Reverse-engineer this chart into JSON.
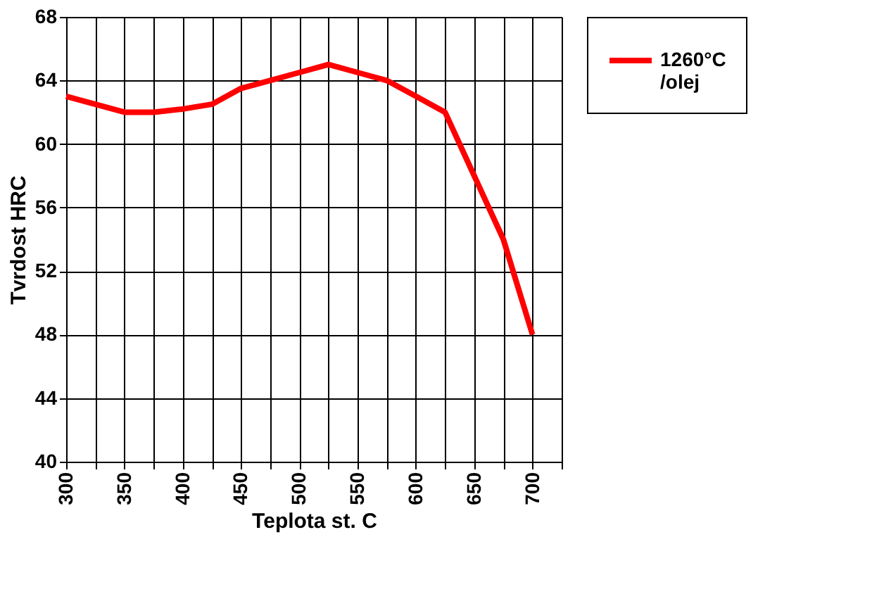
{
  "chart_data": {
    "type": "line",
    "xlabel": "Teplota st. C",
    "ylabel": "Tvrdost HRC",
    "x": [
      300,
      325,
      350,
      375,
      400,
      425,
      450,
      475,
      500,
      525,
      550,
      575,
      600,
      625,
      650,
      675,
      700
    ],
    "series": [
      {
        "name": "1260°C /olej",
        "color": "#ff0000",
        "values": [
          63,
          62.5,
          62,
          62,
          62.2,
          62.5,
          63.5,
          64,
          64.5,
          65,
          64.5,
          64,
          63,
          62,
          58,
          54,
          48
        ]
      }
    ],
    "xlim": [
      300,
      725
    ],
    "xticks": [
      300,
      {
        "value": 325,
        "label": null
      },
      350,
      {
        "value": 375,
        "label": null
      },
      400,
      {
        "value": 425,
        "label": null
      },
      450,
      {
        "value": 475,
        "label": null
      },
      500,
      {
        "value": 525,
        "label": null
      },
      550,
      {
        "value": 575,
        "label": null
      },
      600,
      {
        "value": 625,
        "label": null
      },
      650,
      {
        "value": 675,
        "label": null
      },
      700,
      {
        "value": 725,
        "label": null
      }
    ],
    "ylim": [
      40,
      68
    ],
    "yticks": [
      40,
      44,
      48,
      52,
      56,
      60,
      64,
      68
    ],
    "grid": true,
    "legend": "right",
    "marker": "none",
    "line_style": "solid"
  }
}
